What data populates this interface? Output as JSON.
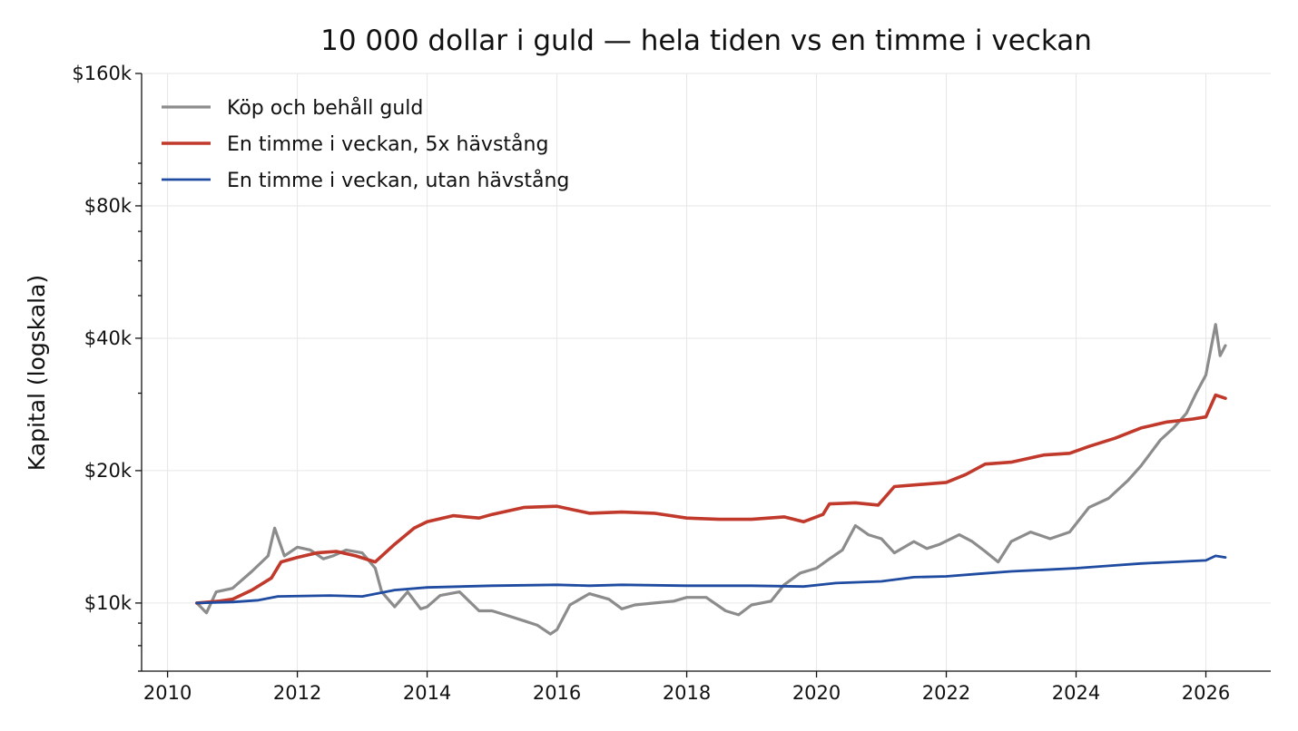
{
  "chart_data": {
    "type": "line",
    "title": "10 000 dollar i guld — hela tiden vs en timme i veckan",
    "xlabel": "",
    "ylabel": "Kapital (logskala)",
    "y_scale": "log",
    "xlim": [
      2009.6,
      2027.0
    ],
    "ylim": [
      7000,
      160000
    ],
    "x_ticks": [
      2010,
      2012,
      2014,
      2016,
      2018,
      2020,
      2022,
      2024,
      2026
    ],
    "x_tick_labels": [
      "2010",
      "2012",
      "2014",
      "2016",
      "2018",
      "2020",
      "2022",
      "2024",
      "2026"
    ],
    "y_ticks": [
      10000,
      20000,
      40000,
      80000,
      160000
    ],
    "y_tick_labels": [
      "$10k",
      "$20k",
      "$40k",
      "$80k",
      "$160k"
    ],
    "grid": true,
    "legend_position": "top-left",
    "series": [
      {
        "name": "Köp och behåll guld",
        "color": "#8c8c8c",
        "points": [
          [
            2010.45,
            10000
          ],
          [
            2010.6,
            9500
          ],
          [
            2010.75,
            10600
          ],
          [
            2011.0,
            10800
          ],
          [
            2011.3,
            11800
          ],
          [
            2011.55,
            12800
          ],
          [
            2011.65,
            14800
          ],
          [
            2011.8,
            12800
          ],
          [
            2012.0,
            13400
          ],
          [
            2012.2,
            13200
          ],
          [
            2012.4,
            12600
          ],
          [
            2012.55,
            12800
          ],
          [
            2012.75,
            13200
          ],
          [
            2013.0,
            13000
          ],
          [
            2013.2,
            12000
          ],
          [
            2013.3,
            10600
          ],
          [
            2013.5,
            9800
          ],
          [
            2013.7,
            10600
          ],
          [
            2013.9,
            9700
          ],
          [
            2014.0,
            9800
          ],
          [
            2014.2,
            10400
          ],
          [
            2014.5,
            10600
          ],
          [
            2014.8,
            9600
          ],
          [
            2015.0,
            9600
          ],
          [
            2015.2,
            9400
          ],
          [
            2015.5,
            9100
          ],
          [
            2015.7,
            8900
          ],
          [
            2015.9,
            8500
          ],
          [
            2016.0,
            8700
          ],
          [
            2016.2,
            9900
          ],
          [
            2016.5,
            10500
          ],
          [
            2016.8,
            10200
          ],
          [
            2017.0,
            9700
          ],
          [
            2017.2,
            9900
          ],
          [
            2017.5,
            10000
          ],
          [
            2017.8,
            10100
          ],
          [
            2018.0,
            10300
          ],
          [
            2018.3,
            10300
          ],
          [
            2018.6,
            9600
          ],
          [
            2018.8,
            9400
          ],
          [
            2019.0,
            9900
          ],
          [
            2019.3,
            10100
          ],
          [
            2019.5,
            11000
          ],
          [
            2019.75,
            11700
          ],
          [
            2020.0,
            12000
          ],
          [
            2020.2,
            12600
          ],
          [
            2020.4,
            13200
          ],
          [
            2020.6,
            15000
          ],
          [
            2020.8,
            14300
          ],
          [
            2021.0,
            14000
          ],
          [
            2021.2,
            13000
          ],
          [
            2021.5,
            13800
          ],
          [
            2021.7,
            13300
          ],
          [
            2021.9,
            13600
          ],
          [
            2022.2,
            14300
          ],
          [
            2022.4,
            13800
          ],
          [
            2022.6,
            13100
          ],
          [
            2022.8,
            12400
          ],
          [
            2023.0,
            13800
          ],
          [
            2023.3,
            14500
          ],
          [
            2023.6,
            14000
          ],
          [
            2023.9,
            14500
          ],
          [
            2024.2,
            16500
          ],
          [
            2024.5,
            17300
          ],
          [
            2024.8,
            19000
          ],
          [
            2025.0,
            20500
          ],
          [
            2025.3,
            23500
          ],
          [
            2025.5,
            25000
          ],
          [
            2025.7,
            27000
          ],
          [
            2025.85,
            30000
          ],
          [
            2026.0,
            33000
          ],
          [
            2026.08,
            38000
          ],
          [
            2026.15,
            43000
          ],
          [
            2026.22,
            36500
          ],
          [
            2026.3,
            38500
          ]
        ]
      },
      {
        "name": "En timme i veckan, 5x hävstång",
        "color": "#c0392b",
        "points": [
          [
            2010.45,
            10000
          ],
          [
            2010.8,
            10100
          ],
          [
            2011.0,
            10200
          ],
          [
            2011.3,
            10700
          ],
          [
            2011.6,
            11400
          ],
          [
            2011.75,
            12400
          ],
          [
            2012.0,
            12700
          ],
          [
            2012.3,
            13000
          ],
          [
            2012.6,
            13100
          ],
          [
            2012.9,
            12800
          ],
          [
            2013.2,
            12400
          ],
          [
            2013.5,
            13600
          ],
          [
            2013.8,
            14800
          ],
          [
            2014.0,
            15300
          ],
          [
            2014.4,
            15800
          ],
          [
            2014.8,
            15600
          ],
          [
            2015.0,
            15900
          ],
          [
            2015.5,
            16500
          ],
          [
            2016.0,
            16600
          ],
          [
            2016.5,
            16000
          ],
          [
            2017.0,
            16100
          ],
          [
            2017.5,
            16000
          ],
          [
            2018.0,
            15600
          ],
          [
            2018.5,
            15500
          ],
          [
            2019.0,
            15500
          ],
          [
            2019.5,
            15700
          ],
          [
            2019.8,
            15300
          ],
          [
            2020.1,
            15900
          ],
          [
            2020.2,
            16800
          ],
          [
            2020.6,
            16900
          ],
          [
            2020.95,
            16700
          ],
          [
            2021.2,
            18400
          ],
          [
            2021.6,
            18600
          ],
          [
            2022.0,
            18800
          ],
          [
            2022.3,
            19600
          ],
          [
            2022.6,
            20700
          ],
          [
            2023.0,
            20900
          ],
          [
            2023.5,
            21700
          ],
          [
            2023.9,
            21900
          ],
          [
            2024.2,
            22700
          ],
          [
            2024.6,
            23700
          ],
          [
            2025.0,
            25000
          ],
          [
            2025.4,
            25800
          ],
          [
            2025.8,
            26200
          ],
          [
            2026.0,
            26500
          ],
          [
            2026.15,
            29700
          ],
          [
            2026.3,
            29200
          ]
        ]
      },
      {
        "name": "En timme i veckan, utan hävstång",
        "color": "#1f4ba0",
        "points": [
          [
            2010.45,
            10000
          ],
          [
            2011.0,
            10050
          ],
          [
            2011.4,
            10150
          ],
          [
            2011.7,
            10350
          ],
          [
            2012.5,
            10400
          ],
          [
            2013.0,
            10350
          ],
          [
            2013.5,
            10700
          ],
          [
            2014.0,
            10850
          ],
          [
            2015.0,
            10950
          ],
          [
            2016.0,
            11000
          ],
          [
            2016.5,
            10950
          ],
          [
            2017.0,
            11000
          ],
          [
            2018.0,
            10950
          ],
          [
            2019.0,
            10950
          ],
          [
            2019.8,
            10900
          ],
          [
            2020.3,
            11100
          ],
          [
            2021.0,
            11200
          ],
          [
            2021.5,
            11450
          ],
          [
            2022.0,
            11500
          ],
          [
            2022.5,
            11650
          ],
          [
            2023.0,
            11800
          ],
          [
            2023.5,
            11900
          ],
          [
            2024.0,
            12000
          ],
          [
            2024.5,
            12150
          ],
          [
            2025.0,
            12300
          ],
          [
            2025.5,
            12400
          ],
          [
            2026.0,
            12500
          ],
          [
            2026.15,
            12800
          ],
          [
            2026.3,
            12700
          ]
        ]
      }
    ]
  }
}
